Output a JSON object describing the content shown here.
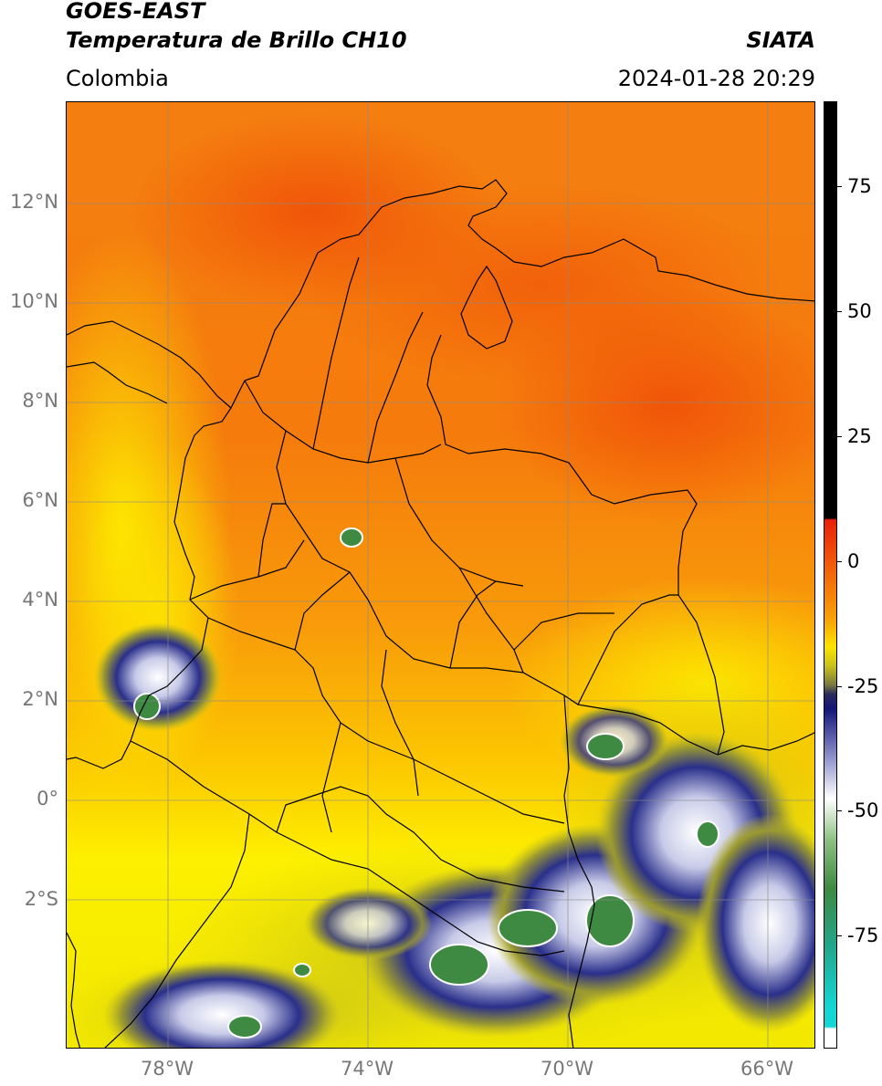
{
  "header": {
    "title_line1": "GOES-EAST",
    "title_line2": "Temperatura de Brillo CH10",
    "source": "SIATA",
    "region": "Colombia",
    "datetime": "2024-01-28 20:29"
  },
  "map": {
    "lat_ticks": [
      "12°N",
      "10°N",
      "8°N",
      "6°N",
      "4°N",
      "2°N",
      "0°",
      "2°S"
    ],
    "lon_ticks": [
      "78°W",
      "74°W",
      "70°W",
      "66°W"
    ],
    "colors": {
      "warm": "#f47a0a",
      "hot": "#f25a0a",
      "yellow": "#fdf100",
      "olive": "#b9b31c",
      "navy": "#17186e",
      "white": "#ffffff",
      "green": "#3e8a42",
      "border": "#000000",
      "grid": "#8a8a8a"
    }
  },
  "colorbar": {
    "labels": [
      "75",
      "50",
      "25",
      "0",
      "-25",
      "-50",
      "-75"
    ]
  }
}
